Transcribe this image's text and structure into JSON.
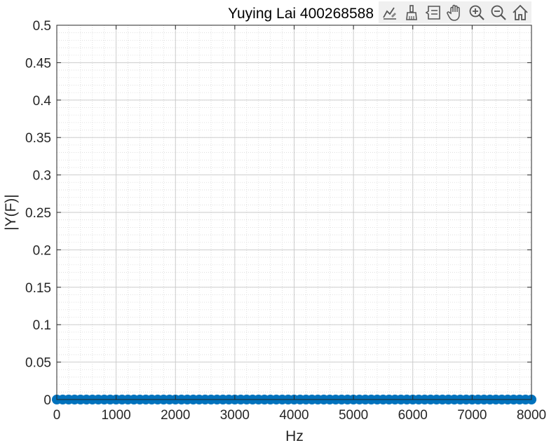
{
  "chart_data": {
    "type": "scatter",
    "title": "Yuying Lai 400268588",
    "xlabel": "Hz",
    "ylabel": "|Y(F)|",
    "xlim": [
      0,
      8000
    ],
    "ylim": [
      0,
      0.5
    ],
    "xticks": [
      0,
      1000,
      2000,
      3000,
      4000,
      5000,
      6000,
      7000,
      8000
    ],
    "xtick_labels": [
      "0",
      "1000",
      "2000",
      "3000",
      "4000",
      "5000",
      "6000",
      "7000",
      "8000"
    ],
    "yticks": [
      0,
      0.05,
      0.1,
      0.15,
      0.2,
      0.25,
      0.3,
      0.35,
      0.4,
      0.45,
      0.5
    ],
    "ytick_labels": [
      "0",
      "0.05",
      "0.1",
      "0.15",
      "0.2",
      "0.25",
      "0.3",
      "0.35",
      "0.4",
      "0.45",
      "0.5"
    ],
    "grid": true,
    "minor_grid": true,
    "series_color": "#0072BD",
    "series": [
      {
        "x_start": 0,
        "x_end": 8000,
        "x_step": 100,
        "y_constant": 0
      }
    ]
  },
  "toolbar": {
    "buttons": [
      {
        "name": "brush-data-icon"
      },
      {
        "name": "paintbrush-icon"
      },
      {
        "name": "data-tips-icon"
      },
      {
        "name": "pan-hand-icon"
      },
      {
        "name": "zoom-in-icon"
      },
      {
        "name": "zoom-out-icon"
      },
      {
        "name": "home-icon"
      }
    ]
  }
}
